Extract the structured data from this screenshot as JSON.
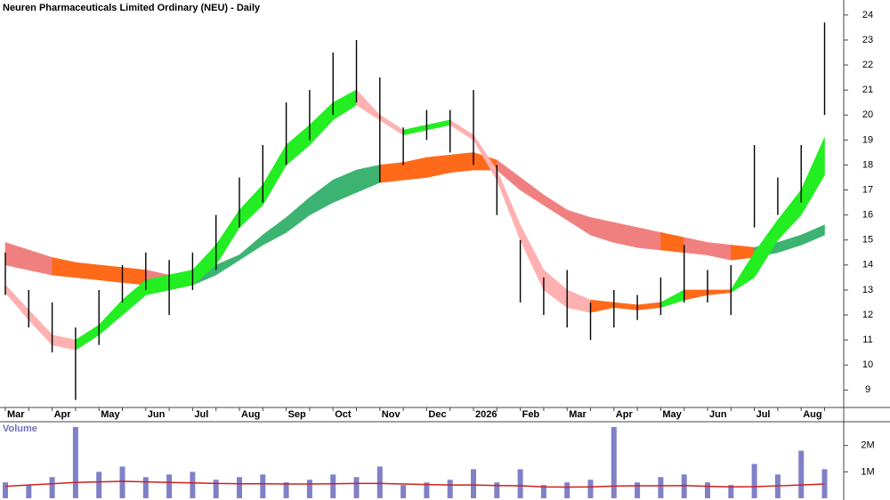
{
  "chart_data": [
    {
      "type": "price-bands",
      "title": "Neuren Pharmaceuticals Limited Ordinary (NEU) - Daily",
      "categories": [
        "Mar",
        null,
        "Apr",
        null,
        "May",
        null,
        "Jun",
        null,
        "Jul",
        null,
        "Aug",
        null,
        "Sep",
        null,
        "Oct",
        null,
        "Nov",
        null,
        "Dec",
        null,
        "2026",
        null,
        "Feb",
        null,
        "Mar",
        null,
        "Apr",
        null,
        "May",
        null,
        "Jun",
        null,
        "Jul",
        null,
        "Aug",
        null
      ],
      "high": [
        14.5,
        13.0,
        12.5,
        11.5,
        13.0,
        14.0,
        14.5,
        14.2,
        14.5,
        16.0,
        17.5,
        18.8,
        20.5,
        21.0,
        22.5,
        23.0,
        21.5,
        19.5,
        20.2,
        20.2,
        21.0,
        18.0,
        15.0,
        13.5,
        13.8,
        12.5,
        13.0,
        12.8,
        13.5,
        14.8,
        13.8,
        14.0,
        18.8,
        17.5,
        18.8,
        23.7
      ],
      "low": [
        12.8,
        11.5,
        10.5,
        8.6,
        10.8,
        12.5,
        13.0,
        12.0,
        13.0,
        13.8,
        15.5,
        16.5,
        18.0,
        19.0,
        20.0,
        20.5,
        17.3,
        18.0,
        19.0,
        18.5,
        18.0,
        16.0,
        12.5,
        12.0,
        11.5,
        11.0,
        11.5,
        11.8,
        12.0,
        12.5,
        12.5,
        12.0,
        15.5,
        16.0,
        16.5,
        20.0
      ],
      "color": "#000000",
      "fast_band": {
        "upper": [
          13.2,
          12.2,
          11.2,
          11.0,
          11.6,
          12.6,
          13.4,
          13.6,
          13.8,
          14.8,
          16.2,
          17.2,
          18.8,
          19.6,
          20.5,
          21.0,
          20.0,
          19.4,
          19.6,
          19.8,
          19.2,
          17.8,
          15.6,
          13.8,
          13.0,
          12.6,
          12.5,
          12.4,
          12.5,
          13.0,
          13.0,
          13.0,
          14.5,
          15.8,
          17.0,
          19.1
        ],
        "lower": [
          12.9,
          11.8,
          10.8,
          10.6,
          11.2,
          12.0,
          12.8,
          13.0,
          13.2,
          14.0,
          15.5,
          16.4,
          18.0,
          18.8,
          19.8,
          20.4,
          19.8,
          19.2,
          19.4,
          19.6,
          19.0,
          17.4,
          15.0,
          13.0,
          12.3,
          12.1,
          12.3,
          12.2,
          12.3,
          12.6,
          12.8,
          12.9,
          13.5,
          15.0,
          16.0,
          17.6
        ],
        "colors": {
          "rising": "#22ee22",
          "falling": "#ffb0b0",
          "flat": "#ff6a1a"
        }
      },
      "slow_band": {
        "upper": [
          14.9,
          14.6,
          14.3,
          14.1,
          14.0,
          13.9,
          13.8,
          13.6,
          13.6,
          14.0,
          14.4,
          15.2,
          15.9,
          16.7,
          17.4,
          17.8,
          18.0,
          18.1,
          18.3,
          18.4,
          18.5,
          18.2,
          17.5,
          16.8,
          16.2,
          15.9,
          15.7,
          15.5,
          15.3,
          15.1,
          14.9,
          14.8,
          14.7,
          14.9,
          15.2,
          15.6
        ],
        "lower": [
          14.0,
          13.8,
          13.6,
          13.5,
          13.4,
          13.3,
          13.2,
          13.0,
          13.2,
          13.6,
          14.2,
          14.8,
          15.3,
          16.0,
          16.5,
          16.9,
          17.3,
          17.4,
          17.5,
          17.7,
          17.8,
          17.8,
          17.0,
          16.4,
          15.8,
          15.2,
          14.9,
          14.7,
          14.6,
          14.5,
          14.4,
          14.2,
          14.3,
          14.5,
          14.8,
          15.2
        ],
        "colors": {
          "rising": "#3cb371",
          "falling": "#f08080",
          "flat": "#ff6a1a"
        }
      },
      "ylim": [
        8.3,
        24.6
      ],
      "yticks": [
        9,
        10,
        11,
        12,
        13,
        14,
        15,
        16,
        17,
        18,
        19,
        20,
        21,
        22,
        23,
        24
      ]
    },
    {
      "type": "bar",
      "title": "Volume",
      "values": [
        600000,
        500000,
        800000,
        2700000,
        1000000,
        1200000,
        800000,
        900000,
        1000000,
        700000,
        800000,
        900000,
        600000,
        700000,
        900000,
        800000,
        1200000,
        500000,
        600000,
        700000,
        1100000,
        600000,
        1100000,
        500000,
        600000,
        700000,
        2700000,
        600000,
        800000,
        900000,
        600000,
        500000,
        1300000,
        900000,
        1800000,
        1100000
      ],
      "color": "#8080c8",
      "average": [
        450000,
        500000,
        550000,
        600000,
        620000,
        640000,
        620000,
        600000,
        580000,
        560000,
        550000,
        550000,
        540000,
        540000,
        550000,
        560000,
        560000,
        540000,
        520000,
        500000,
        500000,
        480000,
        470000,
        430000,
        420000,
        430000,
        460000,
        470000,
        470000,
        480000,
        450000,
        430000,
        440000,
        470000,
        500000,
        540000
      ],
      "average_color": "#cc2020",
      "ylim": [
        0,
        2900000
      ],
      "yticks": [
        {
          "value": 1000000,
          "label": "1M"
        },
        {
          "value": 2000000,
          "label": "2M"
        }
      ]
    }
  ]
}
